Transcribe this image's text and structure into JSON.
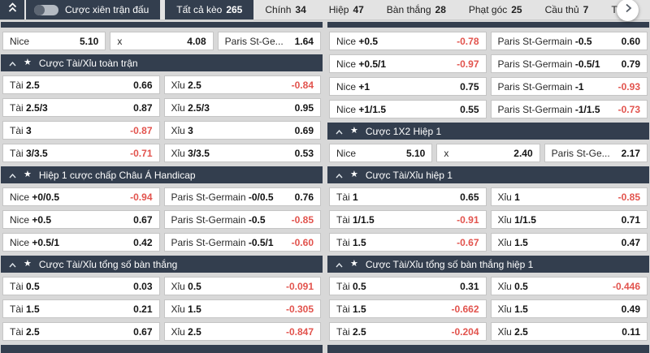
{
  "colors": {
    "navy": "#333e4e",
    "negative_red": "#e2534d",
    "text_dark": "#151515",
    "page_bg": "#d8d8d8",
    "cell_border": "#c5c5c5"
  },
  "topbar": {
    "parlay_label": "Cược xiên trận đấu",
    "tabs": [
      {
        "label": "Tất cả kèo",
        "count": "265",
        "selected": true
      },
      {
        "label": "Chính",
        "count": "34",
        "selected": false
      },
      {
        "label": "Hiệp",
        "count": "47",
        "selected": false
      },
      {
        "label": "Bàn thắng",
        "count": "28",
        "selected": false
      },
      {
        "label": "Phạt góc",
        "count": "25",
        "selected": false
      },
      {
        "label": "Cầu thủ",
        "count": "7",
        "selected": false
      },
      {
        "label": "Thẻ",
        "count": "",
        "selected": false
      }
    ]
  },
  "columns": [
    {
      "sections": [
        {
          "title": null,
          "rows": [
            [
              {
                "name": "Nice",
                "line": "",
                "odds": "5.10"
              },
              {
                "name": "x",
                "line": "",
                "odds": "4.08"
              },
              {
                "name": "Paris St-Ge...",
                "line": "",
                "odds": "1.64"
              }
            ]
          ]
        },
        {
          "title": "Cược Tài/Xỉu toàn trận",
          "rows": [
            [
              {
                "name": "Tài",
                "line": "2.5",
                "odds": "0.66"
              },
              {
                "name": "Xỉu",
                "line": "2.5",
                "odds": "-0.84"
              }
            ],
            [
              {
                "name": "Tài",
                "line": "2.5/3",
                "odds": "0.87"
              },
              {
                "name": "Xỉu",
                "line": "2.5/3",
                "odds": "0.95"
              }
            ],
            [
              {
                "name": "Tài",
                "line": "3",
                "odds": "-0.87"
              },
              {
                "name": "Xỉu",
                "line": "3",
                "odds": "0.69"
              }
            ],
            [
              {
                "name": "Tài",
                "line": "3/3.5",
                "odds": "-0.71"
              },
              {
                "name": "Xỉu",
                "line": "3/3.5",
                "odds": "0.53"
              }
            ]
          ]
        },
        {
          "title": "Hiệp 1 cược chấp Châu Á Handicap",
          "rows": [
            [
              {
                "name": "Nice",
                "line": "+0/0.5",
                "odds": "-0.94"
              },
              {
                "name": "Paris St-Germain",
                "line": "-0/0.5",
                "odds": "0.76"
              }
            ],
            [
              {
                "name": "Nice",
                "line": "+0.5",
                "odds": "0.67"
              },
              {
                "name": "Paris St-Germain",
                "line": "-0.5",
                "odds": "-0.85"
              }
            ],
            [
              {
                "name": "Nice",
                "line": "+0.5/1",
                "odds": "0.42"
              },
              {
                "name": "Paris St-Germain",
                "line": "-0.5/1",
                "odds": "-0.60"
              }
            ]
          ]
        },
        {
          "title": "Cược Tài/Xỉu tổng số bàn thắng",
          "rows": [
            [
              {
                "name": "Tài",
                "line": "0.5",
                "odds": "0.03"
              },
              {
                "name": "Xỉu",
                "line": "0.5",
                "odds": "-0.091"
              }
            ],
            [
              {
                "name": "Tài",
                "line": "1.5",
                "odds": "0.21"
              },
              {
                "name": "Xỉu",
                "line": "1.5",
                "odds": "-0.305"
              }
            ],
            [
              {
                "name": "Tài",
                "line": "2.5",
                "odds": "0.67"
              },
              {
                "name": "Xỉu",
                "line": "2.5",
                "odds": "-0.847"
              }
            ]
          ]
        }
      ]
    },
    {
      "sections": [
        {
          "title": null,
          "rows": [
            [
              {
                "name": "Nice",
                "line": "+0.5",
                "odds": "-0.78"
              },
              {
                "name": "Paris St-Germain",
                "line": "-0.5",
                "odds": "0.60"
              }
            ],
            [
              {
                "name": "Nice",
                "line": "+0.5/1",
                "odds": "-0.97"
              },
              {
                "name": "Paris St-Germain",
                "line": "-0.5/1",
                "odds": "0.79"
              }
            ],
            [
              {
                "name": "Nice",
                "line": "+1",
                "odds": "0.75"
              },
              {
                "name": "Paris St-Germain",
                "line": "-1",
                "odds": "-0.93"
              }
            ],
            [
              {
                "name": "Nice",
                "line": "+1/1.5",
                "odds": "0.55"
              },
              {
                "name": "Paris St-Germain",
                "line": "-1/1.5",
                "odds": "-0.73"
              }
            ]
          ]
        },
        {
          "title": "Cược 1X2 Hiệp 1",
          "rows": [
            [
              {
                "name": "Nice",
                "line": "",
                "odds": "5.10"
              },
              {
                "name": "x",
                "line": "",
                "odds": "2.40"
              },
              {
                "name": "Paris St-Ge...",
                "line": "",
                "odds": "2.17"
              }
            ]
          ]
        },
        {
          "title": "Cược Tài/Xỉu hiệp 1",
          "rows": [
            [
              {
                "name": "Tài",
                "line": "1",
                "odds": "0.65"
              },
              {
                "name": "Xỉu",
                "line": "1",
                "odds": "-0.85"
              }
            ],
            [
              {
                "name": "Tài",
                "line": "1/1.5",
                "odds": "-0.91"
              },
              {
                "name": "Xỉu",
                "line": "1/1.5",
                "odds": "0.71"
              }
            ],
            [
              {
                "name": "Tài",
                "line": "1.5",
                "odds": "-0.67"
              },
              {
                "name": "Xỉu",
                "line": "1.5",
                "odds": "0.47"
              }
            ]
          ]
        },
        {
          "title": "Cược Tài/Xỉu tổng số bàn thắng hiệp 1",
          "rows": [
            [
              {
                "name": "Tài",
                "line": "0.5",
                "odds": "0.31"
              },
              {
                "name": "Xỉu",
                "line": "0.5",
                "odds": "-0.446"
              }
            ],
            [
              {
                "name": "Tài",
                "line": "1.5",
                "odds": "-0.662"
              },
              {
                "name": "Xỉu",
                "line": "1.5",
                "odds": "0.49"
              }
            ],
            [
              {
                "name": "Tài",
                "line": "2.5",
                "odds": "-0.204"
              },
              {
                "name": "Xỉu",
                "line": "2.5",
                "odds": "0.11"
              }
            ]
          ]
        }
      ]
    }
  ]
}
